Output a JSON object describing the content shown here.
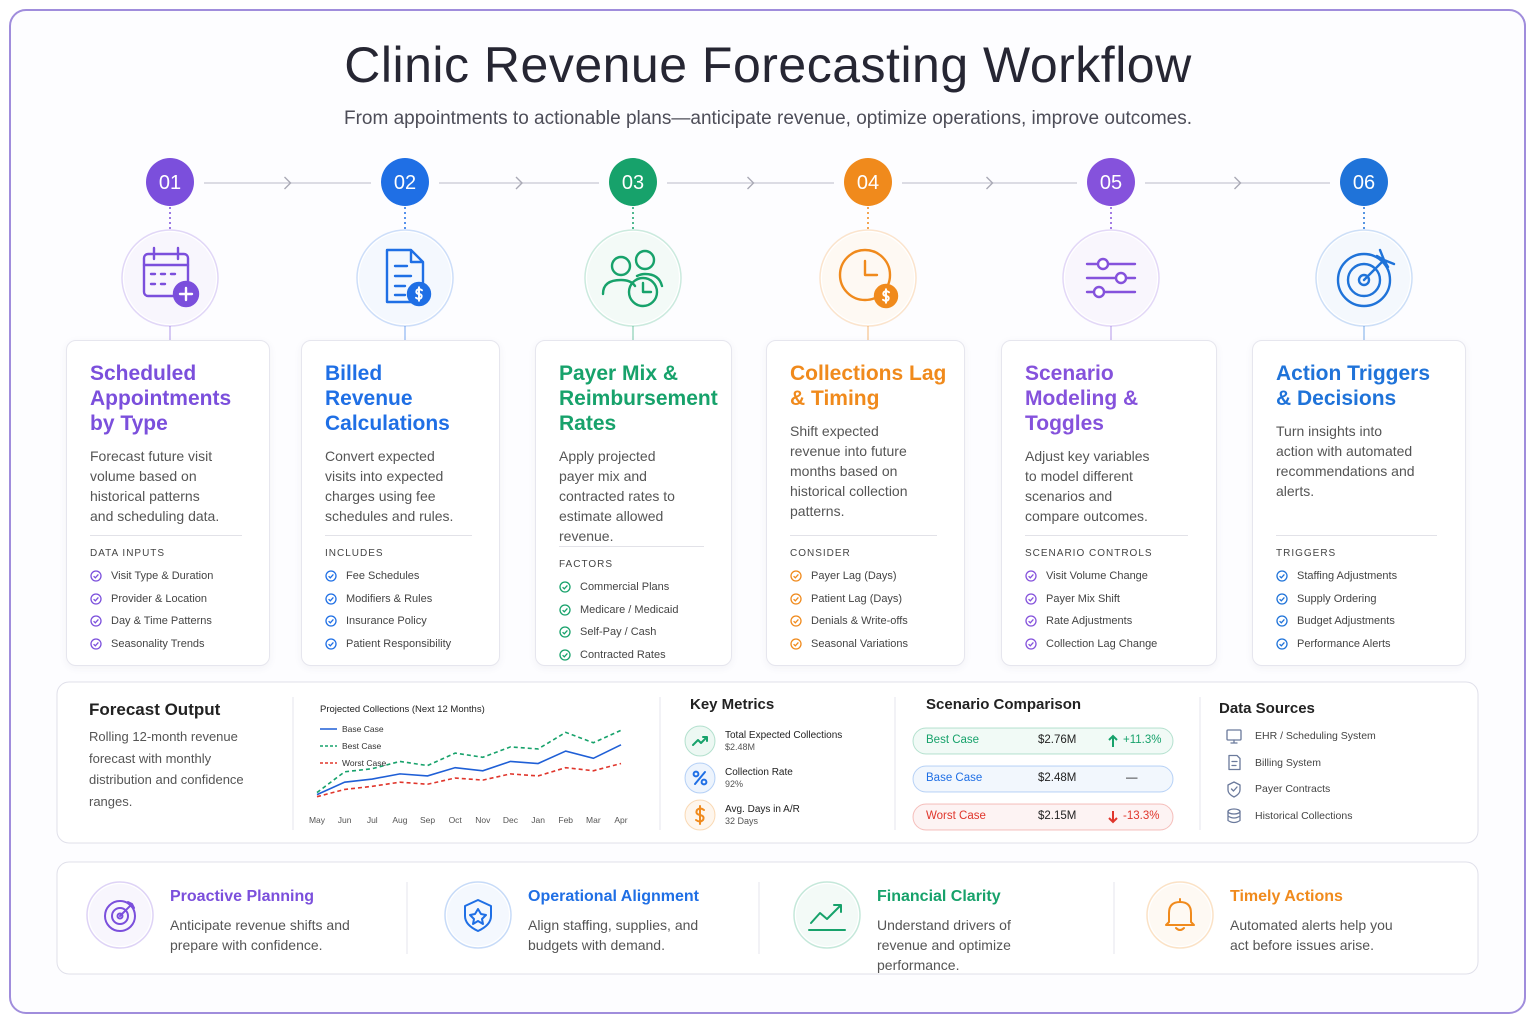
{
  "title": "Clinic Revenue Forecasting Workflow",
  "subtitle": "From appointments to actionable plans—anticipate revenue, optimize operations, improve outcomes.",
  "steps": [
    {
      "number": "01",
      "color": "#7b4fdc",
      "title": "Scheduled Appointments by Type",
      "description": "Forecast future visit volume based on historical patterns and scheduling data.",
      "section_label": "DATA INPUTS",
      "items": [
        "Visit Type & Duration",
        "Provider & Location",
        "Day & Time Patterns",
        "Seasonality Trends"
      ]
    },
    {
      "number": "02",
      "color": "#1f6fe5",
      "title": "Billed Revenue Calculations",
      "description": "Convert expected visits into expected charges using fee schedules and rules.",
      "section_label": "INCLUDES",
      "items": [
        "Fee Schedules",
        "Modifiers & Rules",
        "Insurance Policy",
        "Patient Responsibility"
      ]
    },
    {
      "number": "03",
      "color": "#17a26b",
      "title": "Payer Mix & Reimbursement Rates",
      "description": "Apply projected payer mix and contracted rates to estimate allowed revenue.",
      "section_label": "FACTORS",
      "items": [
        "Commercial Plans",
        "Medicare / Medicaid",
        "Self-Pay / Cash",
        "Contracted Rates"
      ]
    },
    {
      "number": "04",
      "color": "#f08a1c",
      "title": "Collections Lag & Timing",
      "description": "Shift expected revenue into future months based on historical collection patterns.",
      "section_label": "CONSIDER",
      "items": [
        "Payer Lag (Days)",
        "Patient Lag (Days)",
        "Denials & Write-offs",
        "Seasonal Variations"
      ]
    },
    {
      "number": "05",
      "color": "#8552dc",
      "title": "Scenario Modeling & Toggles",
      "description": "Adjust key variables to model different scenarios and compare outcomes.",
      "section_label": "SCENARIO CONTROLS",
      "items": [
        "Visit Volume Change",
        "Payer Mix Shift",
        "Rate Adjustments",
        "Collection Lag Change"
      ]
    },
    {
      "number": "06",
      "color": "#1f73d9",
      "title": "Action Triggers & Decisions",
      "description": "Turn insights into action with automated recommendations and alerts.",
      "section_label": "TRIGGERS",
      "items": [
        "Staffing Adjustments",
        "Supply Ordering",
        "Budget Adjustments",
        "Performance Alerts"
      ]
    }
  ],
  "forecast_output": {
    "title": "Forecast Output",
    "description": "Rolling 12-month revenue forecast with monthly distribution and confidence ranges.",
    "chart": {
      "type": "line",
      "title": "Projected Collections (Next 12 Months)",
      "categories": [
        "May",
        "Jun",
        "Jul",
        "Aug",
        "Sep",
        "Oct",
        "Nov",
        "Dec",
        "Jan",
        "Feb",
        "Mar",
        "Apr"
      ],
      "ylim": [
        0,
        80
      ],
      "series": [
        {
          "name": "Base Case",
          "color": "#1f5fd6",
          "dashed": false,
          "values": [
            10,
            22,
            25,
            30,
            28,
            36,
            33,
            42,
            40,
            52,
            45,
            58
          ]
        },
        {
          "name": "Best Case",
          "color": "#17a26b",
          "dashed": true,
          "values": [
            12,
            32,
            35,
            42,
            38,
            50,
            46,
            56,
            54,
            70,
            60,
            72
          ]
        },
        {
          "name": "Worst Case",
          "color": "#e0362c",
          "dashed": true,
          "values": [
            8,
            15,
            18,
            22,
            20,
            26,
            24,
            30,
            28,
            36,
            33,
            40
          ]
        }
      ]
    }
  },
  "key_metrics": {
    "title": "Key Metrics",
    "items": [
      {
        "label": "Total Expected Collections",
        "value": "$2.48M",
        "color": "#17a26b"
      },
      {
        "label": "Collection Rate",
        "value": "92%",
        "color": "#1f6fe5"
      },
      {
        "label": "Avg. Days in A/R",
        "value": "32 Days",
        "color": "#f08a1c"
      }
    ]
  },
  "scenario_comparison": {
    "title": "Scenario Comparison",
    "rows": [
      {
        "name": "Best Case",
        "value": "$2.76M",
        "change": "+11.3%",
        "trend": "up",
        "color": "#17a26b"
      },
      {
        "name": "Base Case",
        "value": "$2.48M",
        "change": "—",
        "color": "#1f6fe5"
      },
      {
        "name": "Worst Case",
        "value": "$2.15M",
        "change": "-13.3%",
        "trend": "down",
        "color": "#e0362c"
      }
    ]
  },
  "data_sources": {
    "title": "Data Sources",
    "items": [
      "EHR / Scheduling System",
      "Billing System",
      "Payer Contracts",
      "Historical Collections"
    ]
  },
  "benefits": [
    {
      "title": "Proactive Planning",
      "description": "Anticipate revenue shifts and prepare with confidence.",
      "color": "#7b4fdc"
    },
    {
      "title": "Operational Alignment",
      "description": "Align staffing, supplies, and budgets with demand.",
      "color": "#1f6fe5"
    },
    {
      "title": "Financial Clarity",
      "description": "Understand drivers of revenue and optimize performance.",
      "color": "#17a26b"
    },
    {
      "title": "Timely Actions",
      "description": "Automated alerts help you act before issues arise.",
      "color": "#f08a1c"
    }
  ]
}
